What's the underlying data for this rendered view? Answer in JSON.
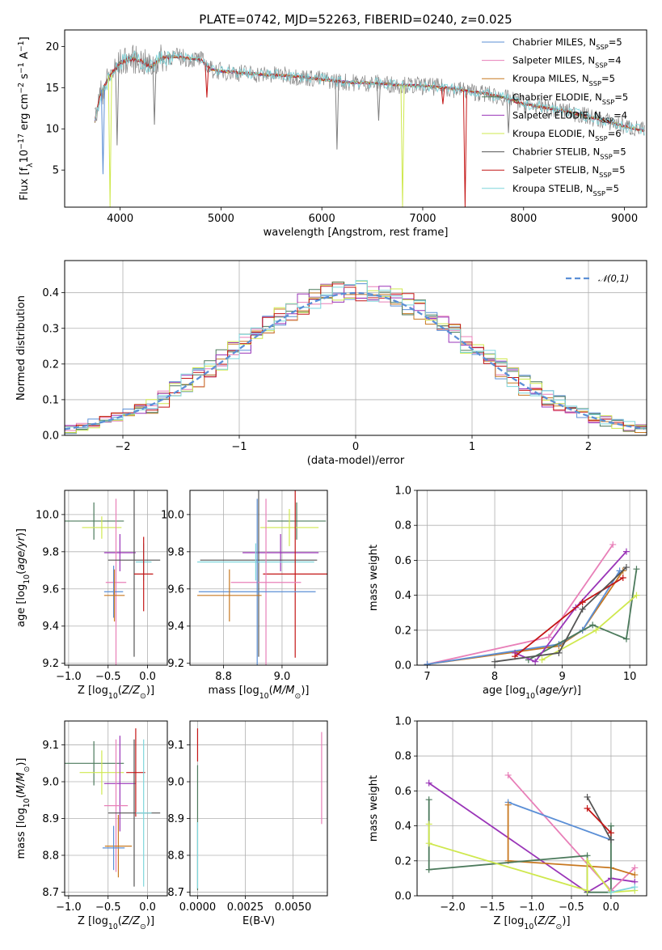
{
  "title": "PLATE=0742, MJD=52263, FIBERID=0240, z=0.025",
  "colors": {
    "Chabrier MILES": "#5b8fd6",
    "Salpeter MILES": "#e87fb8",
    "Kroupa MILES": "#c87820",
    "Chabrier ELODIE": "#4c7a5c",
    "Salpeter ELODIE": "#9a35b8",
    "Kroupa ELODIE": "#cfe84e",
    "Chabrier STELIB": "#555555",
    "Salpeter STELIB": "#c41616",
    "Kroupa STELIB": "#7ed6dc",
    "normal_curve": "#5b8fd6",
    "observed_spectrum": "#808080"
  },
  "chart_data": [
    {
      "name": "spectrum",
      "type": "line",
      "xlabel": "wavelength [Angstrom, rest frame]",
      "ylabel": "Flux [f_λ10^-17 erg cm^-2 s^-1 A^-1]",
      "xlim": [
        3450,
        9220
      ],
      "ylim": [
        0.5,
        22
      ],
      "xticks": [
        "4000",
        "5000",
        "6000",
        "7000",
        "8000",
        "9000"
      ],
      "yticks": [
        "5",
        "10",
        "15",
        "20"
      ],
      "grid": false,
      "legend": "top-right",
      "legend_entries": [
        "Chabrier MILES, N_SSP=5",
        "Salpeter MILES, N_SSP=4",
        "Kroupa MILES, N_SSP=5",
        "Chabrier ELODIE, N_SSP=5",
        "Salpeter ELODIE, N_SSP=4",
        "Kroupa ELODIE, N_SSP=6",
        "Chabrier STELIB, N_SSP=5",
        "Salpeter STELIB, N_SSP=5",
        "Kroupa STELIB, N_SSP=5"
      ],
      "continuum": {
        "x": [
          3750,
          3800,
          3900,
          4000,
          4100,
          4200,
          4300,
          4400,
          4500,
          4600,
          4700,
          4800,
          4900,
          5000,
          5200,
          5400,
          5600,
          5800,
          6000,
          6200,
          6400,
          6600,
          6800,
          7000,
          7200,
          7400,
          7600,
          7800,
          8000,
          8200,
          8400,
          8600,
          8800,
          9000,
          9200
        ],
        "y": [
          11,
          14,
          16.5,
          18,
          18.5,
          18.3,
          17.5,
          18.5,
          18.8,
          18.7,
          18.5,
          18.4,
          17.2,
          17.0,
          16.8,
          16.6,
          16.5,
          16.3,
          16.0,
          15.7,
          15.6,
          15.5,
          15.3,
          15.2,
          15.0,
          14.7,
          14.3,
          13.8,
          13.0,
          12.6,
          12.2,
          11.6,
          11.0,
          10.3,
          9.8
        ]
      },
      "dips": [
        {
          "x": 3830,
          "y": 4.5,
          "series": "Chabrier MILES"
        },
        {
          "x": 3900,
          "y": 0.5,
          "series": "Kroupa ELODIE"
        },
        {
          "x": 3970,
          "y": 8,
          "series": "Chabrier STELIB"
        },
        {
          "x": 4340,
          "y": 10.5,
          "series": "Chabrier STELIB"
        },
        {
          "x": 4860,
          "y": 13.8,
          "series": "Salpeter STELIB"
        },
        {
          "x": 6150,
          "y": 7.5,
          "series": "Chabrier STELIB"
        },
        {
          "x": 6563,
          "y": 11,
          "series": "Chabrier STELIB"
        },
        {
          "x": 6800,
          "y": 0.5,
          "series": "Kroupa ELODIE"
        },
        {
          "x": 7200,
          "y": 13,
          "series": "Salpeter STELIB"
        },
        {
          "x": 7420,
          "y": 0.5,
          "series": "Salpeter STELIB"
        },
        {
          "x": 7850,
          "y": 9.5,
          "series": "Chabrier STELIB"
        }
      ]
    },
    {
      "name": "residuals",
      "type": "step",
      "xlabel": "(data-model)/error",
      "ylabel": "Normed distribution",
      "xlim": [
        -2.5,
        2.5
      ],
      "ylim": [
        0,
        0.49
      ],
      "xticks": [
        "−2",
        "−1",
        "0",
        "1",
        "2"
      ],
      "yticks": [
        "0.0",
        "0.1",
        "0.2",
        "0.3",
        "0.4"
      ],
      "grid": true,
      "legend": "top-right",
      "legend_entries": [
        "𝒩(0,1)"
      ],
      "bin_width": 0.1,
      "reference_curve": "gaussian mean 0 sigma 1"
    },
    {
      "name": "age_vs_Z",
      "type": "errorbar",
      "xlabel": "Z [log10(Z/Z⊙)]",
      "ylabel": "age  [log10(age/yr)]",
      "xlim": [
        -1.05,
        0.25
      ],
      "ylim": [
        9.19,
        10.13
      ],
      "xticks": [
        "−1.0",
        "−0.5",
        "0.0"
      ],
      "yticks": [
        "9.2",
        "9.4",
        "9.6",
        "9.8",
        "10.0"
      ],
      "grid": true,
      "points": [
        {
          "series": "Chabrier ELODIE",
          "x": -0.68,
          "y": 9.965,
          "xerr": 0.38,
          "yerr": 0.1
        },
        {
          "series": "Kroupa ELODIE",
          "x": -0.58,
          "y": 9.93,
          "xerr": 0.25,
          "yerr": 0.06
        },
        {
          "series": "Salpeter ELODIE",
          "x": -0.35,
          "y": 9.795,
          "xerr": 0.2,
          "yerr": 0.1
        },
        {
          "series": "Salpeter MILES",
          "x": -0.4,
          "y": 9.635,
          "xerr": 0.13,
          "yerr": 0.45
        },
        {
          "series": "Chabrier MILES",
          "x": -0.43,
          "y": 9.585,
          "xerr": 0.12,
          "yerr": 0.14
        },
        {
          "series": "Kroupa MILES",
          "x": -0.42,
          "y": 9.565,
          "xerr": 0.13,
          "yerr": 0.14
        },
        {
          "series": "Chabrier STELIB",
          "x": -0.17,
          "y": 9.755,
          "xerr": 0.33,
          "yerr": 0.52
        },
        {
          "series": "Kroupa STELIB",
          "x": -0.05,
          "y": 9.745,
          "xerr": 0.1,
          "yerr": 0.1
        },
        {
          "series": "Salpeter STELIB",
          "x": -0.05,
          "y": 9.68,
          "xerr": 0.12,
          "yerr": 0.2
        }
      ]
    },
    {
      "name": "age_vs_mass",
      "type": "errorbar",
      "xlabel": "mass [log10(M/M⊙)]",
      "ylabel": "",
      "xlim": [
        8.685,
        9.155
      ],
      "ylim": [
        9.19,
        10.13
      ],
      "xticks": [
        "8.8",
        "9.0"
      ],
      "yticks": [
        "9.2",
        "9.4",
        "9.6",
        "9.8",
        "10.0"
      ],
      "grid": true,
      "points": [
        {
          "series": "Chabrier ELODIE",
          "x": 9.05,
          "y": 9.965,
          "xerr": 0.1,
          "yerr": 0.1
        },
        {
          "series": "Kroupa ELODIE",
          "x": 9.025,
          "y": 9.93,
          "xerr": 0.1,
          "yerr": 0.1
        },
        {
          "series": "Salpeter ELODIE",
          "x": 8.995,
          "y": 9.795,
          "xerr": 0.13,
          "yerr": 0.1
        },
        {
          "series": "Chabrier STELIB",
          "x": 8.92,
          "y": 9.755,
          "xerr": 0.2,
          "yerr": 0.52
        },
        {
          "series": "Kroupa STELIB",
          "x": 8.91,
          "y": 9.745,
          "xerr": 0.2,
          "yerr": 0.1
        },
        {
          "series": "Salpeter STELIB",
          "x": 9.045,
          "y": 9.68,
          "xerr": 0.11,
          "yerr": 0.45
        },
        {
          "series": "Salpeter MILES",
          "x": 8.945,
          "y": 9.635,
          "xerr": 0.12,
          "yerr": 0.45
        },
        {
          "series": "Chabrier MILES",
          "x": 8.915,
          "y": 9.585,
          "xerr": 0.2,
          "yerr": 0.5
        },
        {
          "series": "Kroupa MILES",
          "x": 8.82,
          "y": 9.565,
          "xerr": 0.11,
          "yerr": 0.14
        }
      ]
    },
    {
      "name": "weight_vs_age",
      "type": "line",
      "xlabel": "age  [log10(age/yr)]",
      "ylabel": "mass weight",
      "xlim": [
        6.85,
        10.25
      ],
      "ylim": [
        0,
        1
      ],
      "xticks": [
        "7",
        "8",
        "9",
        "10"
      ],
      "yticks": [
        "0.0",
        "0.2",
        "0.4",
        "0.6",
        "0.8",
        "1.0"
      ],
      "grid": true,
      "series": [
        {
          "series": "Salpeter MILES",
          "points": [
            [
              7,
              0.005
            ],
            [
              8.8,
              0.16
            ],
            [
              9.75,
              0.69
            ]
          ]
        },
        {
          "series": "Kroupa MILES",
          "points": [
            [
              7,
              0.005
            ],
            [
              8.95,
              0.11
            ],
            [
              9.3,
              0.2
            ],
            [
              9.9,
              0.54
            ]
          ]
        },
        {
          "series": "Chabrier MILES",
          "points": [
            [
              7,
              0.005
            ],
            [
              8.95,
              0.12
            ],
            [
              9.3,
              0.2
            ],
            [
              9.85,
              0.54
            ]
          ]
        },
        {
          "series": "Chabrier ELODIE",
          "points": [
            [
              8.5,
              0.03
            ],
            [
              9.45,
              0.23
            ],
            [
              9.95,
              0.15
            ],
            [
              10.1,
              0.55
            ]
          ]
        },
        {
          "series": "Kroupa ELODIE",
          "points": [
            [
              8.7,
              0.03
            ],
            [
              9.5,
              0.2
            ],
            [
              10.1,
              0.4
            ]
          ]
        },
        {
          "series": "Salpeter ELODIE",
          "points": [
            [
              8.3,
              0.07
            ],
            [
              8.6,
              0.02
            ],
            [
              9.2,
              0.33
            ],
            [
              9.95,
              0.65
            ]
          ]
        },
        {
          "series": "Salpeter STELIB",
          "points": [
            [
              8.3,
              0.05
            ],
            [
              9.3,
              0.36
            ],
            [
              9.9,
              0.5
            ]
          ]
        },
        {
          "series": "Chabrier STELIB",
          "points": [
            [
              8.0,
              0.02
            ],
            [
              8.95,
              0.07
            ],
            [
              9.3,
              0.32
            ],
            [
              9.95,
              0.56
            ]
          ]
        }
      ]
    },
    {
      "name": "mass_vs_Z",
      "type": "errorbar",
      "xlabel": "Z [log10(Z/Z⊙)]",
      "ylabel": "mass [log10(M/M⊙)]",
      "xlim": [
        -1.05,
        0.25
      ],
      "ylim": [
        8.69,
        9.165
      ],
      "xticks": [
        "−1.0",
        "−0.5",
        "0.0"
      ],
      "yticks": [
        "8.7",
        "8.8",
        "8.9",
        "9.0",
        "9.1"
      ],
      "grid": true,
      "points": [
        {
          "series": "Chabrier ELODIE",
          "x": -0.68,
          "y": 9.05,
          "xerr": 0.38,
          "yerr": 0.06
        },
        {
          "series": "Kroupa ELODIE",
          "x": -0.58,
          "y": 9.025,
          "xerr": 0.28,
          "yerr": 0.06
        },
        {
          "series": "Salpeter ELODIE",
          "x": -0.35,
          "y": 8.995,
          "xerr": 0.2,
          "yerr": 0.13
        },
        {
          "series": "Salpeter MILES",
          "x": -0.4,
          "y": 8.935,
          "xerr": 0.15,
          "yerr": 0.18
        },
        {
          "series": "Kroupa MILES",
          "x": -0.37,
          "y": 8.825,
          "xerr": 0.17,
          "yerr": 0.085
        },
        {
          "series": "Chabrier MILES",
          "x": -0.43,
          "y": 8.82,
          "xerr": 0.14,
          "yerr": 0.06
        },
        {
          "series": "Chabrier STELIB",
          "x": -0.17,
          "y": 8.915,
          "xerr": 0.33,
          "yerr": 0.2
        },
        {
          "series": "Salpeter STELIB",
          "x": -0.15,
          "y": 9.025,
          "xerr": 0.12,
          "yerr": 0.12
        },
        {
          "series": "Kroupa STELIB",
          "x": -0.05,
          "y": 8.915,
          "xerr": 0.1,
          "yerr": 0.2
        }
      ]
    },
    {
      "name": "mass_vs_EBV",
      "type": "errorbar",
      "xlabel": "E(B-V)",
      "ylabel": "",
      "xlim": [
        -0.0004,
        0.0068
      ],
      "ylim": [
        8.69,
        9.165
      ],
      "xticks": [
        "0.0000",
        "0.0025",
        "0.0050"
      ],
      "yticks": [
        "8.7",
        "8.8",
        "8.9",
        "9.0",
        "9.1"
      ],
      "grid": true,
      "points": [
        {
          "series": "Salpeter STELIB",
          "x": 0.0,
          "y": 9.1,
          "xerr": 0,
          "yerr": 0.045
        },
        {
          "series": "Chabrier ELODIE",
          "x": 0.0,
          "y": 8.875,
          "xerr": 0,
          "yerr": 0.17
        },
        {
          "series": "Kroupa STELIB",
          "x": 0.0,
          "y": 8.8,
          "xerr": 0,
          "yerr": 0.09
        },
        {
          "series": "Salpeter MILES",
          "x": 0.0065,
          "y": 9.01,
          "xerr": 0,
          "yerr": 0.125
        }
      ]
    },
    {
      "name": "weight_vs_Z",
      "type": "line",
      "xlabel": "Z [log10(Z/Z⊙)]",
      "ylabel": "mass weight",
      "xlim": [
        -2.45,
        0.45
      ],
      "ylim": [
        0,
        1
      ],
      "xticks": [
        "−2.0",
        "−1.5",
        "−1.0",
        "−0.5",
        "0.0"
      ],
      "yticks": [
        "0.0",
        "0.2",
        "0.4",
        "0.6",
        "0.8",
        "1.0"
      ],
      "grid": true,
      "series": [
        {
          "series": "Salpeter ELODIE",
          "points": [
            [
              -2.3,
              0.645
            ],
            [
              -0.3,
              0.02
            ],
            [
              0,
              0.1
            ],
            [
              0.3,
              0.08
            ]
          ]
        },
        {
          "series": "Salpeter MILES",
          "points": [
            [
              -1.3,
              0.69
            ],
            [
              0,
              0.03
            ],
            [
              0.3,
              0.16
            ]
          ]
        },
        {
          "series": "Chabrier MILES",
          "points": [
            [
              -1.3,
              0.535
            ],
            [
              0,
              0.32
            ]
          ]
        },
        {
          "series": "Kroupa MILES",
          "points": [
            [
              -1.3,
              0.52
            ],
            [
              -1.3,
              0.2
            ],
            [
              0,
              0.16
            ],
            [
              0.3,
              0.12
            ]
          ]
        },
        {
          "series": "Chabrier ELODIE",
          "points": [
            [
              -2.3,
              0.55
            ],
            [
              -2.3,
              0.15
            ],
            [
              -0.3,
              0.23
            ],
            [
              -0.3,
              0.02
            ],
            [
              0,
              0.02
            ],
            [
              0,
              0.4
            ]
          ]
        },
        {
          "series": "Kroupa ELODIE",
          "points": [
            [
              -2.3,
              0.41
            ],
            [
              -2.3,
              0.3
            ],
            [
              -0.3,
              0.03
            ],
            [
              -0.3,
              0.2
            ],
            [
              0,
              0.02
            ],
            [
              0.3,
              0.03
            ]
          ]
        },
        {
          "series": "Chabrier STELIB",
          "points": [
            [
              -0.3,
              0.565
            ],
            [
              0,
              0.32
            ]
          ]
        },
        {
          "series": "Salpeter STELIB",
          "points": [
            [
              -0.3,
              0.5
            ],
            [
              0,
              0.36
            ]
          ]
        },
        {
          "series": "Kroupa STELIB",
          "points": [
            [
              0,
              0.02
            ],
            [
              0.3,
              0.05
            ]
          ]
        }
      ]
    }
  ]
}
